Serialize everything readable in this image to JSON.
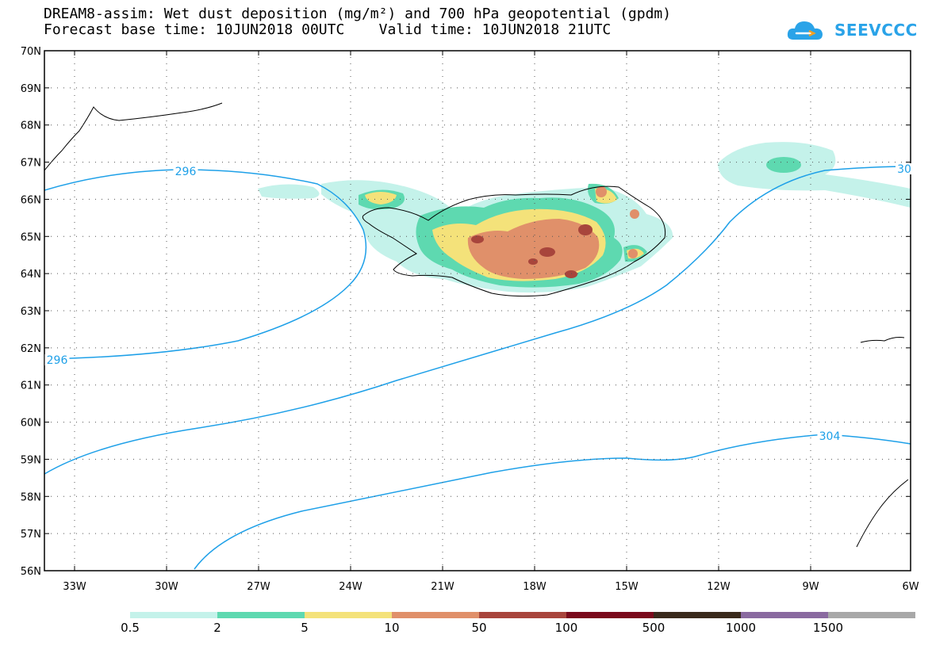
{
  "title": {
    "line1": "DREAM8-assim: Wet dust deposition (mg/m²) and 700 hPa geopotential (gpdm)",
    "line2": "Forecast base time: 10JUN2018 00UTC    Valid time: 10JUN2018 21UTC"
  },
  "logo": {
    "text": "SEEVCCC",
    "color": "#2aa3e8"
  },
  "axes": {
    "lat_labels": [
      "70N",
      "69N",
      "68N",
      "67N",
      "66N",
      "65N",
      "64N",
      "63N",
      "62N",
      "61N",
      "60N",
      "59N",
      "58N",
      "57N",
      "56N"
    ],
    "lon_labels": [
      "33W",
      "30W",
      "27W",
      "24W",
      "21W",
      "18W",
      "15W",
      "12W",
      "9W",
      "6W"
    ]
  },
  "contours": {
    "color": "#1ea0e8",
    "labels": [
      {
        "text": "296"
      },
      {
        "text": "296"
      },
      {
        "text": "30"
      },
      {
        "text": "304"
      }
    ]
  },
  "colorbar": {
    "colors": [
      "#c4f2ea",
      "#5ed9b0",
      "#f4e27a",
      "#e0906a",
      "#a8453c",
      "#7a0a1c",
      "#3a2a1c",
      "#8a6aa0",
      "#a8a8a8"
    ],
    "labels": [
      "0.5",
      "2",
      "5",
      "10",
      "50",
      "100",
      "500",
      "1000",
      "1500"
    ]
  }
}
